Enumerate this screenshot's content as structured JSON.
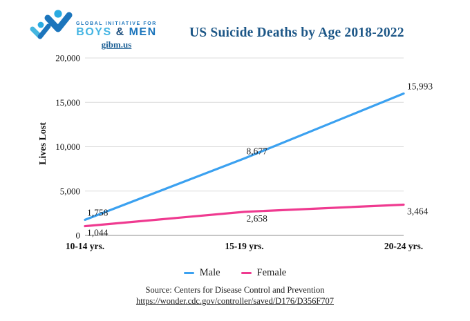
{
  "logo": {
    "tagline": "GLOBAL INITIATIVE FOR",
    "name_part1": "BOYS",
    "name_amp": "&",
    "name_part2": "MEN",
    "website": "gibm.us"
  },
  "title": "US Suicide Deaths by Age 2018-2022",
  "chart_data": {
    "type": "line",
    "title": "US Suicide Deaths by Age 2018-2022",
    "categories": [
      "10-14 yrs.",
      "15-19 yrs.",
      "20-24 yrs."
    ],
    "series": [
      {
        "name": "Male",
        "color": "#3ba1f0",
        "values": [
          1758,
          8677,
          15993
        ]
      },
      {
        "name": "Female",
        "color": "#ef3a90",
        "values": [
          1044,
          2658,
          3464
        ]
      }
    ],
    "xlabel": "",
    "ylabel": "Lives Lost",
    "ylim": [
      0,
      20000
    ],
    "yticks": [
      0,
      5000,
      10000,
      15000,
      20000
    ],
    "grid": true,
    "legend_position": "bottom",
    "colors": {
      "gridline": "#dcdcdc",
      "axis_line": "#a3a3a3",
      "label_text": "#1c1c1c"
    }
  },
  "footer": {
    "source_text": "Source: Centers for Disease Control and Prevention",
    "source_url": "https://wonder.cdc.gov/controller/saved/D176/D356F707"
  }
}
